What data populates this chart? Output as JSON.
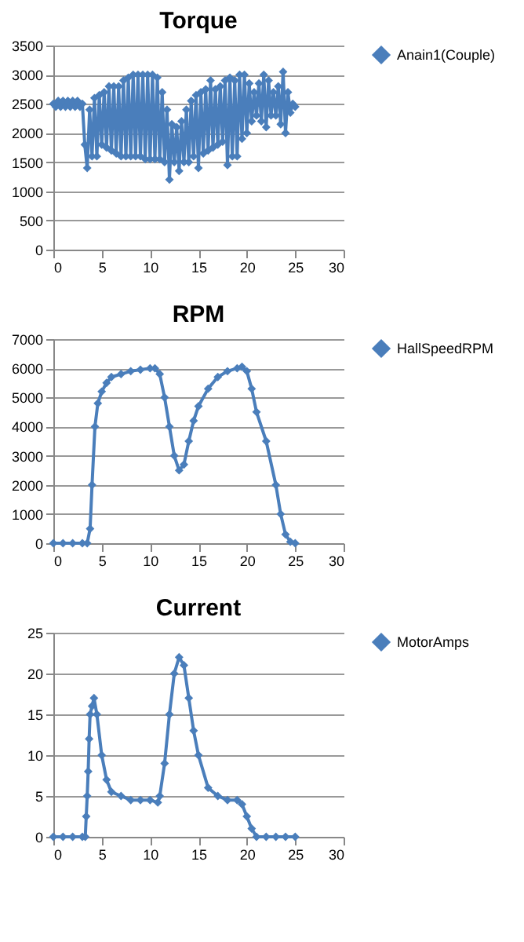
{
  "chart_data": [
    {
      "type": "line",
      "title": "Torque",
      "marker": "diamond",
      "line_style": "solid",
      "grid": "y",
      "legend": "right",
      "xlim": [
        0,
        30
      ],
      "xticks": [
        0,
        5,
        10,
        15,
        20,
        25,
        30
      ],
      "ylim": [
        0,
        3500
      ],
      "yticks": [
        0,
        500,
        1000,
        1500,
        2000,
        2500,
        3000,
        3500
      ],
      "x": [
        0,
        0.25,
        0.5,
        0.75,
        1,
        1.25,
        1.5,
        1.75,
        2,
        2.25,
        2.5,
        2.75,
        3,
        3.25,
        3.5,
        3.75,
        4,
        4.25,
        4.5,
        4.75,
        5,
        5.25,
        5.5,
        5.75,
        6,
        6.25,
        6.5,
        6.75,
        7,
        7.25,
        7.5,
        7.75,
        8,
        8.25,
        8.5,
        8.75,
        9,
        9.25,
        9.5,
        9.75,
        10,
        10.25,
        10.5,
        10.75,
        11,
        11.25,
        11.5,
        11.75,
        12,
        12.25,
        12.5,
        12.75,
        13,
        13.25,
        13.5,
        13.75,
        14,
        14.25,
        14.5,
        14.75,
        15,
        15.25,
        15.5,
        15.75,
        16,
        16.25,
        16.5,
        16.75,
        17,
        17.25,
        17.5,
        17.75,
        18,
        18.25,
        18.5,
        18.75,
        19,
        19.25,
        19.5,
        19.75,
        20,
        20.25,
        20.5,
        20.75,
        21,
        21.25,
        21.5,
        21.75,
        22,
        22.25,
        22.5,
        22.75,
        23,
        23.25,
        23.5,
        23.75,
        24,
        24.25,
        24.5,
        24.75,
        25
      ],
      "series": [
        {
          "name": "Anain1(Couple)",
          "color": "#4a7ebb",
          "values": [
            2500,
            2450,
            2550,
            2450,
            2550,
            2450,
            2550,
            2450,
            2550,
            2450,
            2550,
            2450,
            2500,
            1800,
            1400,
            2400,
            1600,
            2600,
            1600,
            2650,
            1800,
            2700,
            1750,
            2800,
            1700,
            2800,
            1650,
            2800,
            1600,
            2900,
            1600,
            2950,
            1600,
            3000,
            1600,
            3000,
            1600,
            3000,
            1550,
            3000,
            1550,
            3000,
            1550,
            2950,
            1550,
            2700,
            1500,
            2400,
            1200,
            2150,
            1500,
            2100,
            1350,
            2200,
            1500,
            2400,
            1500,
            2550,
            1600,
            2650,
            1400,
            2700,
            1650,
            2750,
            1700,
            2900,
            1750,
            2750,
            1800,
            2800,
            1850,
            2900,
            1450,
            2950,
            1600,
            2900,
            1600,
            3000,
            1900,
            3000,
            2000,
            2850,
            2200,
            2700,
            2300,
            2850,
            2200,
            3000,
            2100,
            2900,
            2300,
            2700,
            2300,
            2800,
            2150,
            3050,
            2000,
            2700,
            2350,
            2500,
            2450
          ]
        }
      ]
    },
    {
      "type": "line",
      "title": "RPM",
      "marker": "diamond",
      "line_style": "solid",
      "grid": "y",
      "legend": "right",
      "xlim": [
        0,
        30
      ],
      "xticks": [
        0,
        5,
        10,
        15,
        20,
        25,
        30
      ],
      "ylim": [
        0,
        7000
      ],
      "yticks": [
        0,
        1000,
        2000,
        3000,
        4000,
        5000,
        6000,
        7000
      ],
      "x": [
        0,
        1,
        2,
        3,
        3.5,
        3.8,
        4,
        4.3,
        4.6,
        5,
        5.5,
        6,
        7,
        8,
        9,
        10,
        10.5,
        11,
        11.5,
        12,
        12.5,
        13,
        13.5,
        14,
        14.5,
        15,
        16,
        17,
        18,
        19,
        19.5,
        20,
        20.5,
        21,
        22,
        23,
        23.5,
        24,
        24.5,
        25
      ],
      "series": [
        {
          "name": "HallSpeedRPM",
          "color": "#4a7ebb",
          "values": [
            0,
            0,
            0,
            0,
            0,
            500,
            2000,
            4000,
            4800,
            5200,
            5500,
            5700,
            5800,
            5900,
            5950,
            6000,
            6000,
            5800,
            5000,
            4000,
            3000,
            2500,
            2700,
            3500,
            4200,
            4700,
            5300,
            5700,
            5900,
            6000,
            6050,
            5900,
            5300,
            4500,
            3500,
            2000,
            1000,
            300,
            50,
            0
          ]
        }
      ]
    },
    {
      "type": "line",
      "title": "Current",
      "marker": "diamond",
      "line_style": "solid",
      "grid": "y",
      "legend": "right",
      "xlim": [
        0,
        30
      ],
      "xticks": [
        0,
        5,
        10,
        15,
        20,
        25,
        30
      ],
      "ylim": [
        0,
        25
      ],
      "yticks": [
        0,
        5,
        10,
        15,
        20,
        25
      ],
      "x": [
        0,
        1,
        2,
        3,
        3.3,
        3.4,
        3.5,
        3.6,
        3.7,
        3.8,
        4,
        4.2,
        4.5,
        5,
        5.5,
        6,
        7,
        8,
        9,
        10,
        10.8,
        11,
        11.5,
        12,
        12.5,
        13,
        13.5,
        14,
        14.5,
        15,
        16,
        17,
        18,
        19,
        19.5,
        20,
        20.5,
        21,
        22,
        23,
        24,
        25
      ],
      "series": [
        {
          "name": "MotorAmps",
          "color": "#4a7ebb",
          "values": [
            0,
            0,
            0,
            0,
            0,
            2.5,
            5,
            8,
            12,
            15,
            16,
            17,
            15,
            10,
            7,
            5.5,
            5,
            4.5,
            4.5,
            4.5,
            4.2,
            5,
            9,
            15,
            20,
            22,
            21,
            17,
            13,
            10,
            6,
            5,
            4.5,
            4.5,
            4,
            2.5,
            1,
            0,
            0,
            0,
            0,
            0
          ]
        }
      ]
    }
  ]
}
